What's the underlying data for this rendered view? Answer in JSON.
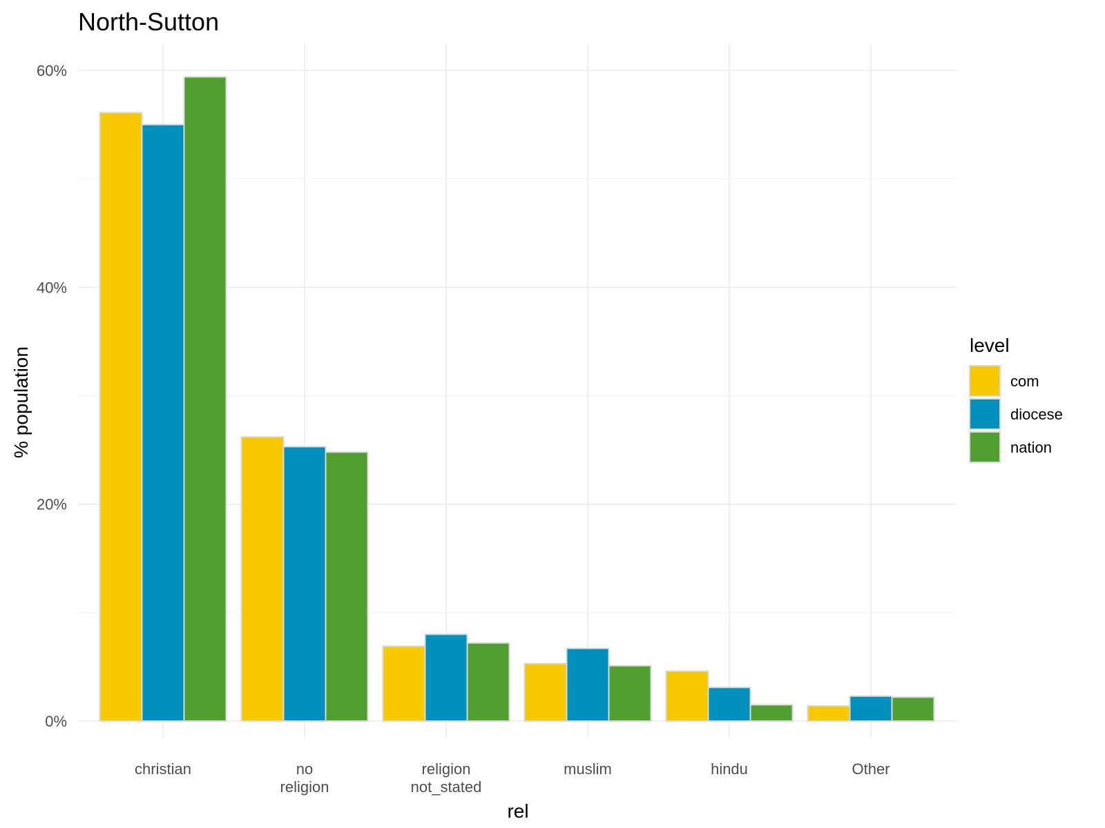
{
  "chart_data": {
    "type": "bar",
    "title": "North-Sutton",
    "xlabel": "rel",
    "ylabel": "% population",
    "categories": [
      [
        "christian"
      ],
      [
        "no",
        "religion"
      ],
      [
        "religion",
        "not_stated"
      ],
      [
        "muslim"
      ],
      [
        "hindu"
      ],
      [
        "Other"
      ]
    ],
    "series": [
      {
        "name": "com",
        "color": "#F9C900",
        "values": [
          56.1,
          26.2,
          6.9,
          5.3,
          4.6,
          1.4
        ]
      },
      {
        "name": "diocese",
        "color": "#0090BE",
        "values": [
          55.0,
          25.3,
          8.0,
          6.7,
          3.1,
          2.3
        ]
      },
      {
        "name": "nation",
        "color": "#519E31",
        "values": [
          59.4,
          24.8,
          7.2,
          5.1,
          1.5,
          2.2
        ]
      }
    ],
    "yticks": [
      0,
      20,
      40,
      60
    ],
    "ytick_labels": [
      "0%",
      "20%",
      "40%",
      "60%"
    ],
    "ylim": [
      -2.9,
      62.4
    ],
    "legend": {
      "title": "level",
      "position": "right"
    },
    "grid": true
  }
}
